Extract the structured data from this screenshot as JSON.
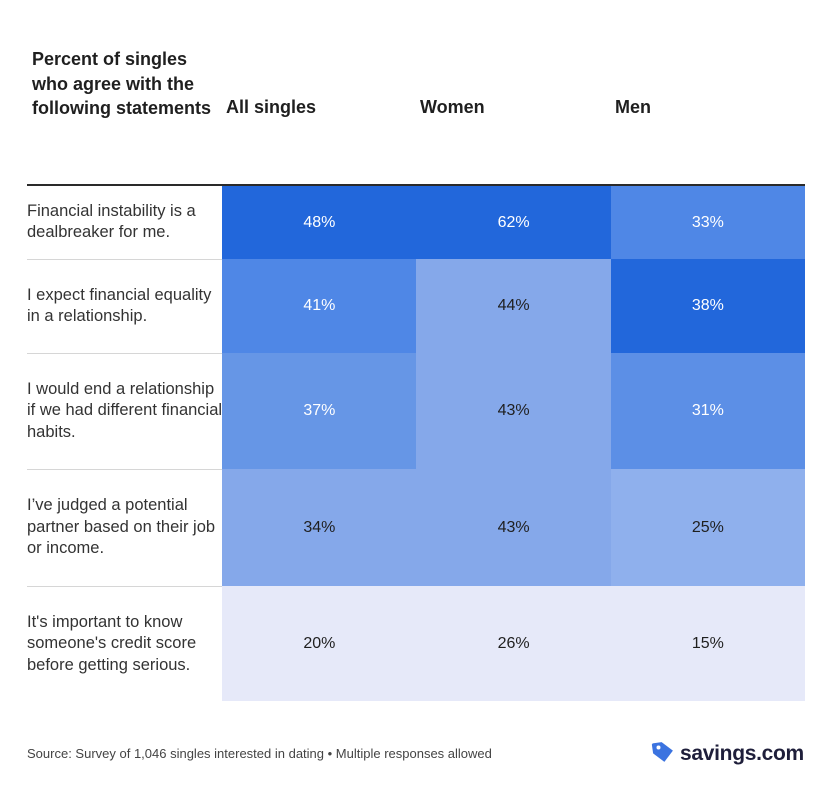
{
  "chart_data": {
    "type": "table",
    "title": "Percent of singles who agree with the following statements",
    "row_header": "Percent of singles who agree with the following statements",
    "columns": [
      "All singles",
      "Women",
      "Men"
    ],
    "rows": [
      {
        "statement": "Financial instability is a dealbreaker for me.",
        "values": [
          48,
          62,
          33
        ],
        "labels": [
          "48%",
          "62%",
          "33%"
        ]
      },
      {
        "statement": "I expect financial equality in a relationship.",
        "values": [
          41,
          44,
          38
        ],
        "labels": [
          "41%",
          "44%",
          "38%"
        ]
      },
      {
        "statement": "I would end a relationship if we had different financial habits.",
        "values": [
          37,
          43,
          31
        ],
        "labels": [
          "37%",
          "43%",
          "31%"
        ]
      },
      {
        "statement": "I’ve judged a potential partner based on their job or income.",
        "values": [
          34,
          43,
          25
        ],
        "labels": [
          "34%",
          "43%",
          "25%"
        ]
      },
      {
        "statement": "It's important to know someone's credit score before getting serious.",
        "values": [
          20,
          26,
          15
        ],
        "labels": [
          "20%",
          "26%",
          "15%"
        ]
      }
    ],
    "cell_colors": [
      [
        "#2267db",
        "#2267db",
        "#4f87e6"
      ],
      [
        "#4f87e6",
        "#85a8ea",
        "#2267db"
      ],
      [
        "#6696e6",
        "#85a8ea",
        "#5c8fe6"
      ],
      [
        "#85a8ea",
        "#85a8ea",
        "#8fb0ed"
      ],
      [
        "#e6e9f9",
        "#e6e9f9",
        "#e6e9f9"
      ]
    ],
    "text_colors": [
      [
        "#ffffff",
        "#ffffff",
        "#ffffff"
      ],
      [
        "#ffffff",
        "#1f1f1f",
        "#ffffff"
      ],
      [
        "#ffffff",
        "#1f1f1f",
        "#ffffff"
      ],
      [
        "#1f1f1f",
        "#1f1f1f",
        "#1f1f1f"
      ],
      [
        "#1f1f1f",
        "#1f1f1f",
        "#1f1f1f"
      ]
    ]
  },
  "footer": {
    "source": "Source: Survey of 1,046 singles interested in dating • Multiple responses allowed",
    "brand": "savings.com",
    "brand_icon": "tag-icon",
    "brand_color": "#3b73e0"
  }
}
